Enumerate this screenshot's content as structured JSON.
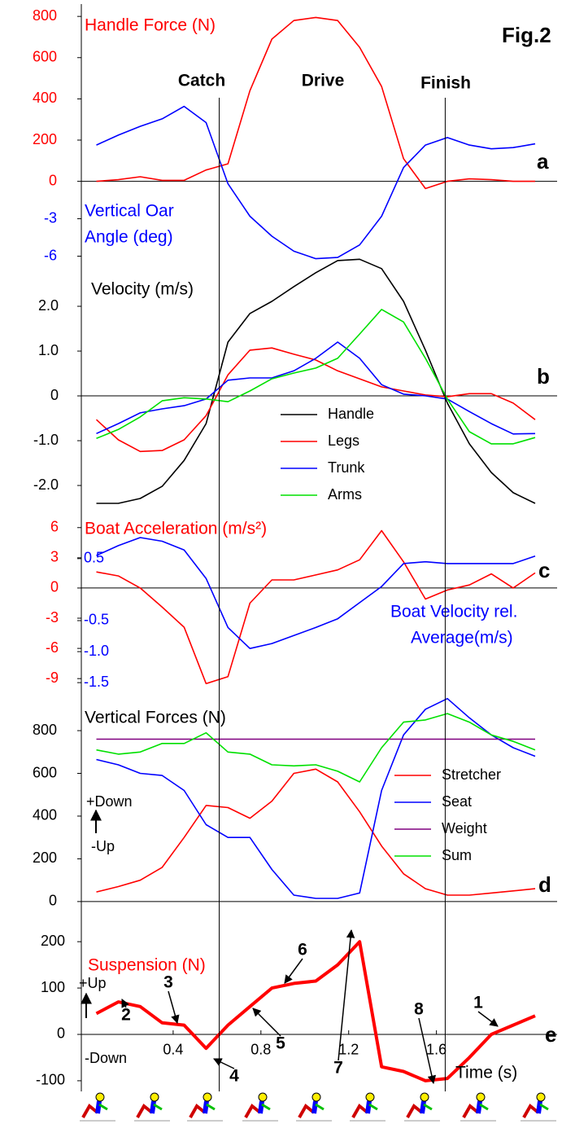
{
  "figure_label": "Fig.2",
  "events": [
    {
      "label": "Catch",
      "x": 0.61
    },
    {
      "label": "Finish",
      "x": 1.64
    }
  ],
  "phase_label": "Drive",
  "chart_data": [
    {
      "type": "line",
      "panel_label": "a",
      "title": "Handle Force (N)",
      "title_color": "#ff0000",
      "y2label": [
        "Vertical Oar",
        "Angle (deg)"
      ],
      "y2label_color": "#0000ff",
      "x": [
        0.05,
        0.15,
        0.25,
        0.35,
        0.45,
        0.55,
        0.65,
        0.75,
        0.85,
        0.95,
        1.05,
        1.15,
        1.25,
        1.35,
        1.45,
        1.55,
        1.65,
        1.75,
        1.85,
        1.95,
        2.05
      ],
      "xlim": [
        0,
        2.15
      ],
      "ylim": [
        -448,
        848
      ],
      "yticks": [
        0,
        200,
        400,
        600,
        800
      ],
      "ytick_color": "#ff0000",
      "y2lim": [
        -7.4,
        14
      ],
      "y2ticks": [
        -3,
        -6
      ],
      "y2tick_color": "#0000ff",
      "series": [
        {
          "color": "#ff0000",
          "values": [
            0,
            8,
            22,
            5,
            5,
            55,
            85,
            440,
            690,
            780,
            795,
            780,
            650,
            460,
            110,
            -35,
            0,
            12,
            8,
            0,
            0
          ]
        },
        {
          "color": "#0000ff",
          "axis": "y2",
          "values": [
            2.9,
            3.7,
            4.4,
            5.0,
            6.0,
            4.7,
            -0.2,
            -2.8,
            -4.4,
            -5.6,
            -6.2,
            -6.1,
            -5.1,
            -2.8,
            1.1,
            2.9,
            3.5,
            2.9,
            2.6,
            2.7,
            3.0
          ]
        }
      ]
    },
    {
      "type": "line",
      "panel_label": "b",
      "title": "Velocity (m/s)",
      "title_color": "#000000",
      "x": [
        0.05,
        0.15,
        0.25,
        0.35,
        0.45,
        0.55,
        0.65,
        0.75,
        0.85,
        0.95,
        1.05,
        1.15,
        1.25,
        1.35,
        1.45,
        1.55,
        1.65,
        1.75,
        1.85,
        1.95,
        2.05
      ],
      "xlim": [
        0,
        2.15
      ],
      "ylim": [
        -2.49,
        3.11
      ],
      "ytick_color": "#000000",
      "yticks": [
        {
          "value": 2,
          "label": "2.0"
        },
        {
          "value": 1,
          "label": "1.0"
        },
        0,
        {
          "value": -1,
          "label": "-1.0"
        },
        {
          "value": -2,
          "label": "-2.0"
        }
      ],
      "legend": "lower-center",
      "series": [
        {
          "name": "Handle",
          "color": "#000000",
          "values": [
            -2.4,
            -2.4,
            -2.29,
            -2.02,
            -1.44,
            -0.62,
            1.2,
            1.84,
            2.11,
            2.44,
            2.75,
            3.02,
            3.05,
            2.84,
            2.11,
            1.02,
            -0.16,
            -1.07,
            -1.71,
            -2.16,
            -2.4
          ]
        },
        {
          "name": "Legs",
          "color": "#ff0000",
          "values": [
            -0.53,
            -0.98,
            -1.24,
            -1.22,
            -0.98,
            -0.44,
            0.47,
            1.02,
            1.07,
            0.93,
            0.8,
            0.56,
            0.38,
            0.2,
            0.11,
            0.02,
            -0.02,
            0.05,
            0.05,
            -0.16,
            -0.53
          ]
        },
        {
          "name": "Trunk",
          "color": "#0000ff",
          "values": [
            -0.84,
            -0.62,
            -0.38,
            -0.29,
            -0.22,
            -0.07,
            0.35,
            0.4,
            0.4,
            0.56,
            0.84,
            1.2,
            0.84,
            0.25,
            0.04,
            0,
            -0.07,
            -0.35,
            -0.62,
            -0.85,
            -0.84
          ]
        },
        {
          "name": "Arms",
          "color": "#00e000",
          "values": [
            -0.95,
            -0.75,
            -0.47,
            -0.11,
            -0.04,
            -0.07,
            -0.13,
            0.11,
            0.38,
            0.51,
            0.62,
            0.84,
            1.38,
            1.93,
            1.65,
            0.84,
            -0.07,
            -0.8,
            -1.07,
            -1.07,
            -0.93
          ]
        }
      ]
    },
    {
      "type": "line",
      "panel_label": "c",
      "title": "Boat Acceleration (m/s²)",
      "title_color": "#ff0000",
      "y2label": [
        "Boat Velocity rel.",
        "Average(m/s)"
      ],
      "y2label_color": "#0000ff",
      "x": [
        0.05,
        0.15,
        0.25,
        0.35,
        0.45,
        0.55,
        0.65,
        0.75,
        0.85,
        0.95,
        1.05,
        1.15,
        1.25,
        1.35,
        1.45,
        1.55,
        1.65,
        1.75,
        1.85,
        1.95,
        2.05
      ],
      "xlim": [
        0,
        2.15
      ],
      "ylim": [
        -10.2,
        7.6
      ],
      "yticks": [
        6,
        3,
        0,
        -3,
        -6,
        -9
      ],
      "ytick_color": "#ff0000",
      "y2lim": [
        -1.63,
        1.26
      ],
      "y2ticks": [
        0.5,
        -0.5,
        {
          "value": -1,
          "label": "-1.0"
        },
        -1.5
      ],
      "y2tick_color": "#0000ff",
      "series": [
        {
          "color": "#ff0000",
          "values": [
            1.6,
            1.2,
            0,
            -1.9,
            -3.9,
            -9.5,
            -8.8,
            -1.5,
            0.8,
            0.8,
            1.3,
            1.8,
            2.8,
            5.7,
            2.6,
            -1.1,
            -0.2,
            0.3,
            1.4,
            0,
            1.5
          ]
        },
        {
          "color": "#0000ff",
          "axis": "y2",
          "values": [
            0.55,
            0.71,
            0.84,
            0.78,
            0.64,
            0.18,
            -0.61,
            -0.95,
            -0.87,
            -0.74,
            -0.61,
            -0.47,
            -0.21,
            0.05,
            0.42,
            0.45,
            0.42,
            0.42,
            0.42,
            0.42,
            0.54
          ]
        }
      ]
    },
    {
      "type": "line",
      "panel_label": "d",
      "title": "Vertical Forces (N)",
      "title_color": "#000000",
      "direction_labels": [
        "+Down",
        "-Up"
      ],
      "x": [
        0.05,
        0.15,
        0.25,
        0.35,
        0.45,
        0.55,
        0.65,
        0.75,
        0.85,
        0.95,
        1.05,
        1.15,
        1.25,
        1.35,
        1.45,
        1.55,
        1.65,
        1.75,
        1.85,
        1.95,
        2.05
      ],
      "xlim": [
        0,
        2.15
      ],
      "ylim": [
        -50,
        987
      ],
      "yticks": [
        800,
        600,
        400,
        200,
        0
      ],
      "ytick_color": "#000000",
      "legend": "right",
      "series": [
        {
          "name": "Stretcher",
          "color": "#ff0000",
          "values": [
            45,
            70,
            100,
            160,
            300,
            450,
            440,
            390,
            470,
            600,
            620,
            560,
            420,
            260,
            130,
            60,
            30,
            30,
            40,
            50,
            60
          ]
        },
        {
          "name": "Seat",
          "color": "#0000ff",
          "values": [
            665,
            640,
            600,
            590,
            520,
            360,
            300,
            300,
            150,
            30,
            15,
            15,
            40,
            520,
            780,
            900,
            950,
            860,
            780,
            720,
            680
          ]
        },
        {
          "name": "Weight",
          "color": "#800080",
          "values": [
            760,
            760,
            760,
            760,
            760,
            760,
            760,
            760,
            760,
            760,
            760,
            760,
            760,
            760,
            760,
            760,
            760,
            760,
            760,
            760,
            760
          ]
        },
        {
          "name": "Sum",
          "color": "#00e000",
          "values": [
            710,
            690,
            700,
            740,
            740,
            790,
            700,
            690,
            640,
            635,
            640,
            610,
            560,
            720,
            840,
            850,
            880,
            840,
            780,
            750,
            710
          ]
        }
      ]
    },
    {
      "type": "line",
      "panel_label": "e",
      "title": "Suspension (N)",
      "title_color": "#ff0000",
      "direction_labels": [
        "+Up",
        "-Down"
      ],
      "x": [
        0.05,
        0.15,
        0.25,
        0.35,
        0.45,
        0.55,
        0.65,
        0.75,
        0.85,
        0.95,
        1.05,
        1.15,
        1.25,
        1.35,
        1.45,
        1.55,
        1.65,
        1.75,
        1.85,
        1.95,
        2.05
      ],
      "xlim": [
        0,
        2.15
      ],
      "xticks": [
        0.4,
        0.8,
        1.2,
        1.6
      ],
      "xlabel": "Time (s)",
      "ylim": [
        -123,
        260
      ],
      "yticks": [
        200,
        100,
        0,
        -100
      ],
      "ytick_color": "#000000",
      "annotations": [
        "1",
        "2",
        "3",
        "4",
        "5",
        "6",
        "7",
        "8"
      ],
      "series": [
        {
          "color": "#ff0000",
          "values": [
            45,
            70,
            60,
            25,
            20,
            -30,
            20,
            60,
            100,
            110,
            115,
            150,
            200,
            -70,
            -80,
            -100,
            -95,
            -50,
            0,
            20,
            40
          ]
        }
      ]
    }
  ]
}
